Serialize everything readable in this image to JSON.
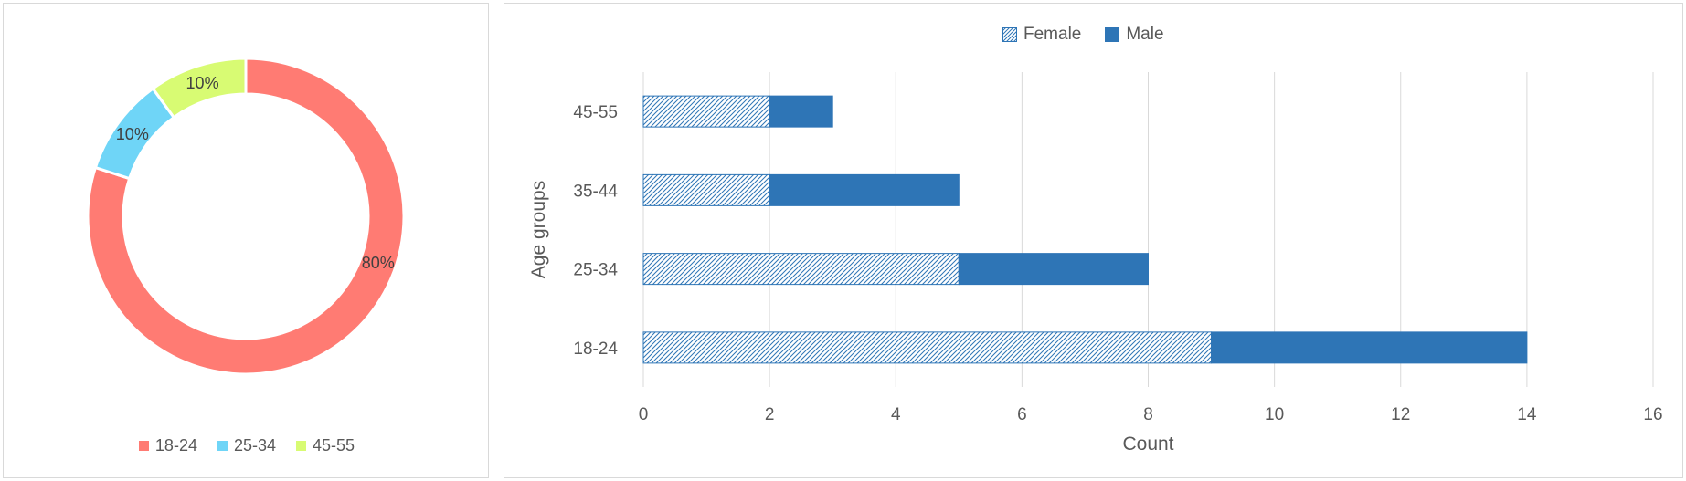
{
  "chart_data": [
    {
      "type": "pie",
      "subtype": "donut",
      "categories": [
        "18-24",
        "25-34",
        "45-55"
      ],
      "values": [
        80,
        10,
        10
      ],
      "labels": [
        "80%",
        "10%",
        "10%"
      ],
      "colors": [
        "#ff7b73",
        "#6fd5f7",
        "#d8fb73"
      ],
      "legend_position": "bottom"
    },
    {
      "type": "bar",
      "orientation": "horizontal",
      "stacked": true,
      "categories": [
        "18-24",
        "25-34",
        "35-44",
        "45-55"
      ],
      "series": [
        {
          "name": "Female",
          "values": [
            9,
            5,
            2,
            2
          ],
          "color": "#2e75b6",
          "pattern": "diagonal-hatch"
        },
        {
          "name": "Male",
          "values": [
            5,
            3,
            3,
            1
          ],
          "color": "#2e75b6",
          "pattern": "solid"
        }
      ],
      "xlabel": "Count",
      "ylabel": "Age groups",
      "xlim": [
        0,
        16
      ],
      "xticks": [
        0,
        2,
        4,
        6,
        8,
        10,
        12,
        14,
        16
      ],
      "grid": "vertical",
      "legend_position": "top"
    }
  ]
}
